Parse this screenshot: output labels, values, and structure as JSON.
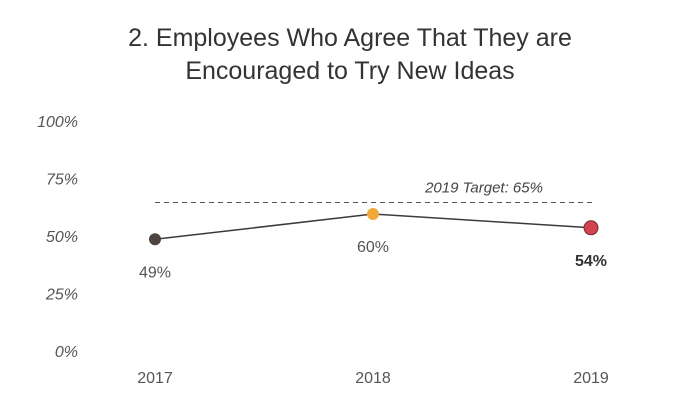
{
  "chart_data": {
    "type": "line",
    "title_line1": "2. Employees Who Agree That They are",
    "title_line2": "Encouraged to Try New Ideas",
    "categories": [
      "2017",
      "2018",
      "2019"
    ],
    "series": [
      {
        "values": [
          49,
          60,
          54
        ],
        "labels": [
          "49%",
          "60%",
          "54%"
        ],
        "point_colors": [
          "#4d4340",
          "#f2a93b",
          "#d1434f"
        ],
        "line_color": "#3b3b3b"
      }
    ],
    "y_ticks": [
      "0%",
      "25%",
      "50%",
      "75%",
      "100%"
    ],
    "ylim": [
      0,
      100
    ],
    "target": {
      "value": 65,
      "label": "2019 Target: 65%"
    },
    "grid": false
  }
}
